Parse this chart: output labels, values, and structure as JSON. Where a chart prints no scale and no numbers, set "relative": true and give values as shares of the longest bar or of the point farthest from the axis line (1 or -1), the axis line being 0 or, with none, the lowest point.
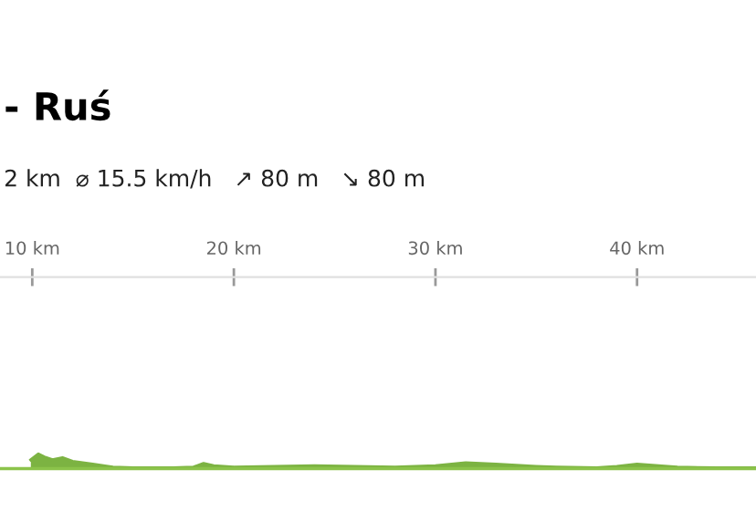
{
  "chart_data": {
    "type": "area",
    "title": "- Ruś",
    "subtitle": "2 km  ⌀ 15.5 km/h   ↗ 80 m   ↘ 80 m",
    "relative": true,
    "color": "#7cb342",
    "x": [
      9.93,
      10.3,
      10.6,
      11.0,
      11.5,
      12.0,
      13.0,
      14.0,
      15.0,
      17.0,
      18.0,
      18.5,
      19.0,
      20.0,
      22.0,
      24.0,
      26.0,
      28.0,
      30.0,
      31.5,
      33.0,
      35.0,
      36.0,
      38.0,
      39.0,
      40.0,
      42.0,
      44.0,
      45.9
    ],
    "values": [
      0.6,
      1.0,
      0.8,
      0.6,
      0.75,
      0.5,
      0.3,
      0.1,
      0.05,
      0.05,
      0.1,
      0.35,
      0.2,
      0.1,
      0.15,
      0.2,
      0.15,
      0.1,
      0.2,
      0.4,
      0.3,
      0.15,
      0.1,
      0.05,
      0.15,
      0.3,
      0.1,
      0.05,
      0.05
    ],
    "xlim": [
      8.4,
      45.9
    ],
    "xticks": [
      {
        "value": 10,
        "label": "10 km"
      },
      {
        "value": 20,
        "label": "20 km"
      },
      {
        "value": 30,
        "label": "30 km"
      },
      {
        "value": 40,
        "label": "40 km"
      }
    ]
  }
}
